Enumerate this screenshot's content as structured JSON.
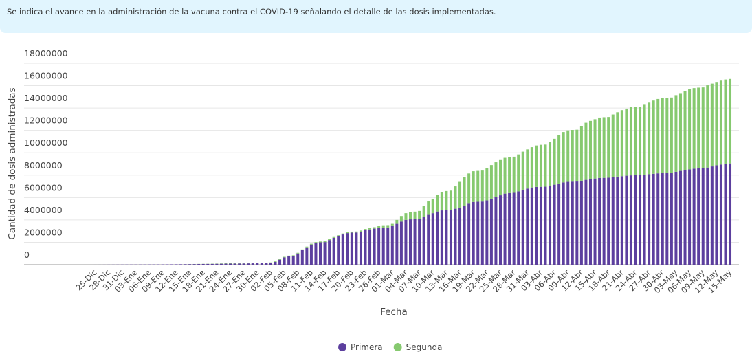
{
  "header": {
    "text": "Se indica el avance en la administración de la vacuna contra el COVID-19 señalando el detalle de las dosis implementadas."
  },
  "chart_data": {
    "type": "stacked_bar",
    "x_label": "Fecha",
    "y_label": "Cantidad de dosis administradas",
    "categories": [
      null,
      "25-Dic",
      null,
      null,
      "28-Dic",
      null,
      null,
      "31-Dic",
      null,
      null,
      "03-Ene",
      null,
      null,
      "06-Ene",
      null,
      null,
      "09-Ene",
      null,
      null,
      "12-Ene",
      null,
      null,
      "15-Ene",
      null,
      null,
      "18-Ene",
      null,
      null,
      "21-Ene",
      null,
      null,
      "24-Ene",
      null,
      null,
      "27-Ene",
      null,
      null,
      "30-Ene",
      null,
      null,
      "02-Feb",
      null,
      null,
      "05-Feb",
      null,
      null,
      "08-Feb",
      null,
      null,
      "11-Feb",
      null,
      null,
      "14-Feb",
      null,
      null,
      "17-Feb",
      null,
      null,
      "20-Feb",
      null,
      null,
      "23-Feb",
      null,
      null,
      "26-Feb",
      null,
      null,
      "01-Mar",
      null,
      null,
      "04-Mar",
      null,
      null,
      "07-Mar",
      null,
      null,
      "10-Mar",
      null,
      null,
      "13-Mar",
      null,
      null,
      "16-Mar",
      null,
      null,
      "19-Mar",
      null,
      null,
      "22-Mar",
      null,
      null,
      "25-Mar",
      null,
      null,
      "28-Mar",
      null,
      null,
      "31-Mar",
      null,
      null,
      "03-Abr",
      null,
      null,
      "06-Abr",
      null,
      null,
      "09-Abr",
      null,
      null,
      "12-Abr",
      null,
      null,
      "15-Abr",
      null,
      null,
      "18-Abr",
      null,
      null,
      "21-Abr",
      null,
      null,
      "24-Abr",
      null,
      null,
      "27-Abr",
      null,
      null,
      "30-Abr",
      null,
      null,
      "03-May",
      null,
      null,
      "06-May",
      null,
      null,
      "09-May",
      null,
      null,
      "12-May",
      null,
      null,
      "15-May"
    ],
    "series": [
      {
        "name": "Primera",
        "color": "#5c3f9e",
        "values": [
          0,
          1000,
          3000,
          5000,
          8000,
          10000,
          12000,
          14000,
          15000,
          16000,
          17000,
          18000,
          20000,
          22000,
          24000,
          26000,
          28000,
          30000,
          33000,
          36000,
          40000,
          45000,
          50000,
          55000,
          60000,
          65000,
          70000,
          75000,
          80000,
          85000,
          90000,
          95000,
          100000,
          105000,
          110000,
          115000,
          120000,
          125000,
          130000,
          135000,
          150000,
          250000,
          450000,
          650000,
          750000,
          780000,
          1000000,
          1300000,
          1550000,
          1800000,
          1950000,
          2000000,
          2020000,
          2200000,
          2400000,
          2550000,
          2700000,
          2820000,
          2860000,
          2870000,
          2950000,
          3080000,
          3150000,
          3220000,
          3300000,
          3320000,
          3330000,
          3450000,
          3650000,
          3850000,
          4000000,
          4050000,
          4080000,
          4100000,
          4250000,
          4450000,
          4600000,
          4750000,
          4850000,
          4880000,
          4900000,
          5000000,
          5100000,
          5250000,
          5450000,
          5600000,
          5620000,
          5640000,
          5750000,
          5900000,
          6050000,
          6200000,
          6350000,
          6400000,
          6420000,
          6550000,
          6700000,
          6800000,
          6900000,
          6950000,
          6960000,
          6970000,
          7050000,
          7150000,
          7250000,
          7350000,
          7400000,
          7420000,
          7430000,
          7500000,
          7580000,
          7650000,
          7700000,
          7750000,
          7760000,
          7770000,
          7820000,
          7870000,
          7910000,
          7950000,
          7980000,
          7990000,
          8000000,
          8040000,
          8080000,
          8120000,
          8160000,
          8200000,
          8210000,
          8220000,
          8300000,
          8380000,
          8450000,
          8520000,
          8580000,
          8600000,
          8610000,
          8680000,
          8780000,
          8880000,
          8950000,
          9000000,
          9050000
        ]
      },
      {
        "name": "Segunda",
        "color": "#86c96f",
        "values": [
          0,
          0,
          0,
          0,
          0,
          0,
          0,
          0,
          0,
          0,
          0,
          0,
          0,
          0,
          0,
          0,
          0,
          0,
          0,
          0,
          0,
          2000,
          5000,
          8000,
          10000,
          12000,
          15000,
          18000,
          22000,
          26000,
          30000,
          32000,
          35000,
          38000,
          40000,
          42000,
          45000,
          46000,
          47000,
          48000,
          50000,
          52000,
          54000,
          56000,
          57000,
          58000,
          60000,
          62000,
          64000,
          66000,
          68000,
          69000,
          70000,
          72000,
          75000,
          80000,
          85000,
          90000,
          92000,
          93000,
          100000,
          110000,
          120000,
          130000,
          140000,
          142000,
          144000,
          200000,
          350000,
          500000,
          600000,
          650000,
          660000,
          700000,
          1000000,
          1200000,
          1300000,
          1500000,
          1650000,
          1700000,
          1720000,
          2000000,
          2300000,
          2600000,
          2700000,
          2750000,
          2760000,
          2770000,
          2850000,
          3000000,
          3100000,
          3150000,
          3200000,
          3220000,
          3230000,
          3300000,
          3400000,
          3500000,
          3600000,
          3700000,
          3750000,
          3760000,
          3900000,
          4100000,
          4300000,
          4500000,
          4600000,
          4620000,
          4630000,
          4900000,
          5100000,
          5200000,
          5300000,
          5400000,
          5420000,
          5430000,
          5600000,
          5750000,
          5900000,
          6000000,
          6100000,
          6120000,
          6130000,
          6250000,
          6400000,
          6550000,
          6650000,
          6700000,
          6710000,
          6720000,
          6850000,
          6950000,
          7050000,
          7150000,
          7200000,
          7220000,
          7230000,
          7350000,
          7400000,
          7450000,
          7500000,
          7550000,
          7550000
        ]
      }
    ],
    "ylim": [
      0,
      18000000
    ],
    "yticks": [
      0,
      2000000,
      4000000,
      6000000,
      8000000,
      10000000,
      12000000,
      14000000,
      16000000,
      18000000
    ],
    "grid": true
  }
}
